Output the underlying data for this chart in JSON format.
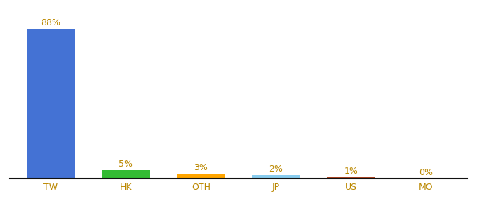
{
  "categories": [
    "TW",
    "HK",
    "OTH",
    "JP",
    "US",
    "MO"
  ],
  "values": [
    88,
    5,
    3,
    2,
    1,
    0
  ],
  "labels": [
    "88%",
    "5%",
    "3%",
    "2%",
    "1%",
    "0%"
  ],
  "bar_colors": [
    "#4472d4",
    "#33bb33",
    "#ffa500",
    "#88ccee",
    "#aa4422",
    "#aaaaaa"
  ],
  "background_color": "#ffffff",
  "label_color": "#bb8800",
  "tick_color": "#bb8800",
  "figsize": [
    6.8,
    3.0
  ],
  "dpi": 100,
  "ylim": [
    0,
    96
  ]
}
